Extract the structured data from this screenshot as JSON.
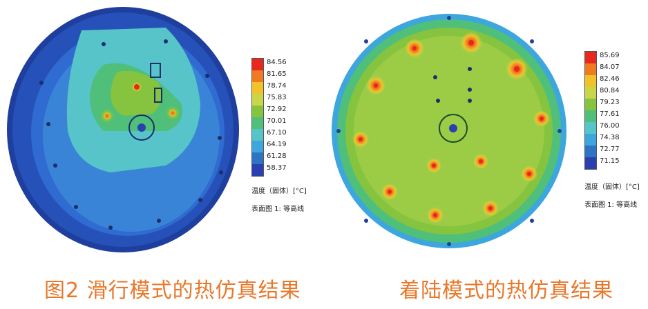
{
  "figures": [
    {
      "id": "glide",
      "legend": {
        "ticks": [
          "84.56",
          "81.65",
          "78.74",
          "75.83",
          "72.92",
          "70.01",
          "67.10",
          "64.19",
          "61.28",
          "58.37"
        ],
        "colors": [
          "#e8281e",
          "#f07a22",
          "#f1c22a",
          "#c9d64a",
          "#86c440",
          "#4fbf7a",
          "#56c4c8",
          "#3da6dc",
          "#2f73c4",
          "#2a3fb0"
        ],
        "unit": "温度（固体）[°C]",
        "sublabel": "表面图 1: 等高线"
      },
      "caption": "图2 滑行模式的热仿真结果"
    },
    {
      "id": "landing",
      "legend": {
        "ticks": [
          "85.69",
          "84.07",
          "82.46",
          "80.84",
          "79.23",
          "77.61",
          "76.00",
          "74.38",
          "72.77",
          "71.15"
        ],
        "colors": [
          "#e8281e",
          "#f07a22",
          "#f1c22a",
          "#c9d64a",
          "#86c440",
          "#4fbf7a",
          "#56c4c8",
          "#3da6dc",
          "#2f73c4",
          "#2a3fb0"
        ],
        "unit": "温度（固体）[°C]",
        "sublabel": "表面图 1: 等高线"
      },
      "caption": "着陆模式的热仿真结果"
    }
  ]
}
